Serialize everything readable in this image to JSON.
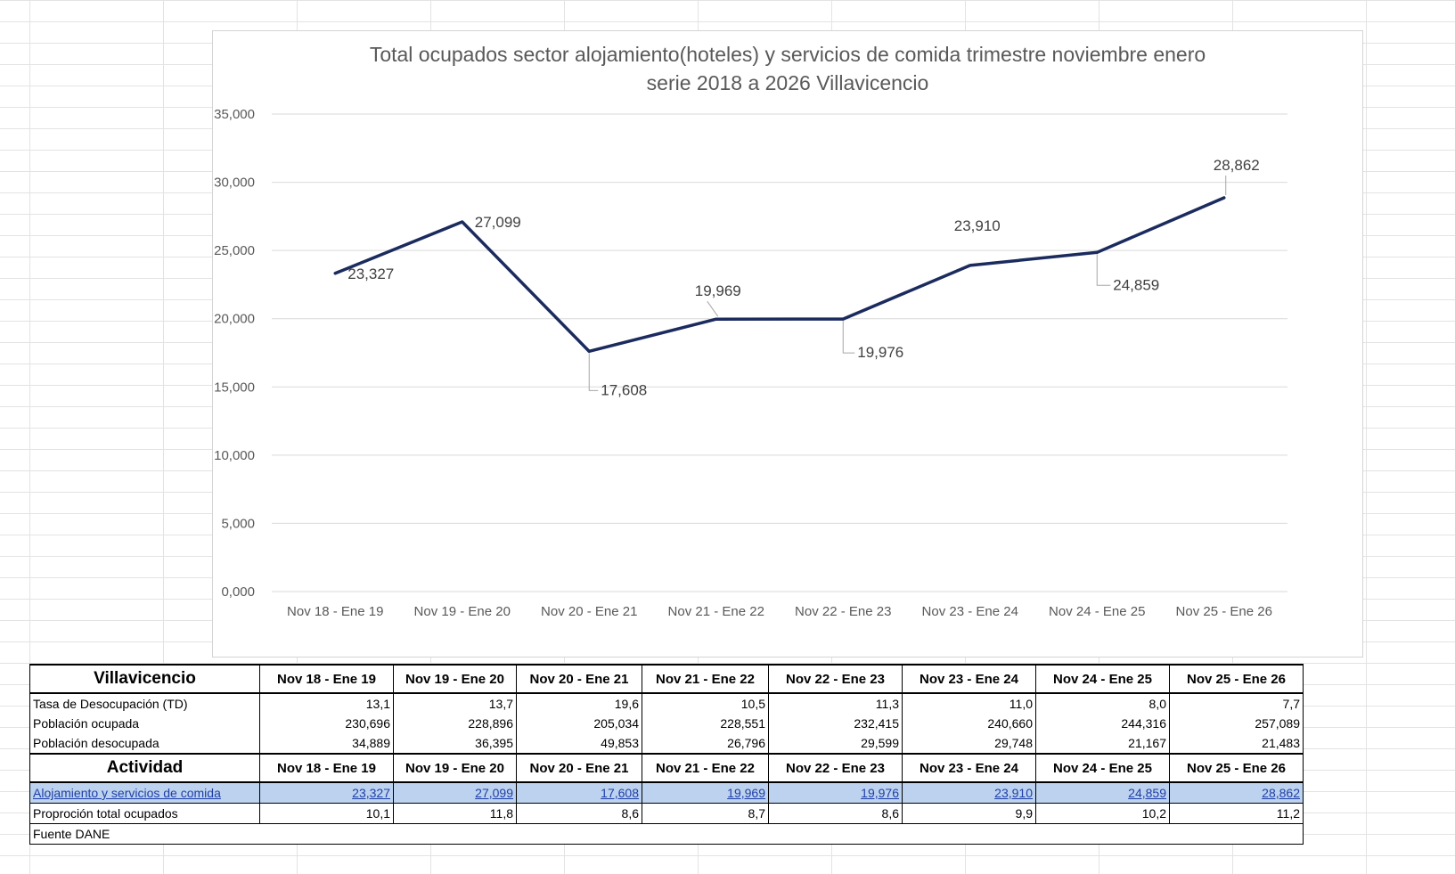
{
  "chart_data": {
    "type": "line",
    "title": [
      "Total ocupados sector alojamiento(hoteles) y servicios de comida trimestre noviembre enero",
      "serie 2018 a 2026 Villavicencio"
    ],
    "categories": [
      "Nov 18 - Ene 19",
      "Nov 19 - Ene 20",
      "Nov 20 - Ene 21",
      "Nov 21 - Ene 22",
      "Nov 22 - Ene 23",
      "Nov 23 - Ene 24",
      "Nov 24 - Ene 25",
      "Nov 25 - Ene 26"
    ],
    "series": [
      {
        "name": "Alojamiento y servicios de comida",
        "values": [
          23327,
          27099,
          17608,
          19969,
          19976,
          23910,
          24859,
          28862
        ]
      }
    ],
    "data_labels": [
      "23,327",
      "27,099",
      "17,608",
      "19,969",
      "19,976",
      "23,910",
      "24,859",
      "28,862"
    ],
    "yticks": [
      "0,000",
      "5,000",
      "10,000",
      "15,000",
      "20,000",
      "25,000",
      "30,000",
      "35,000"
    ],
    "ylim": [
      0,
      35000
    ],
    "grid": true,
    "line_color": "#1b2b5e"
  },
  "table": {
    "periods": [
      "Nov 18 - Ene 19",
      "Nov 19 - Ene 20",
      "Nov 20 - Ene 21",
      "Nov 21 - Ene 22",
      "Nov 22 - Ene 23",
      "Nov 23 - Ene 24",
      "Nov 24 - Ene 25",
      "Nov 25 - Ene 26"
    ],
    "section1_title": "Villavicencio",
    "rows1": [
      {
        "label": "Tasa de Desocupación (TD)",
        "values": [
          "13,1",
          "13,7",
          "19,6",
          "10,5",
          "11,3",
          "11,0",
          "8,0",
          "7,7"
        ]
      },
      {
        "label": "Población ocupada",
        "values": [
          "230,696",
          "228,896",
          "205,034",
          "228,551",
          "232,415",
          "240,660",
          "244,316",
          "257,089"
        ]
      },
      {
        "label": "Población desocupada",
        "values": [
          "34,889",
          "36,395",
          "49,853",
          "26,796",
          "29,599",
          "29,748",
          "21,167",
          "21,483"
        ]
      }
    ],
    "section2_title": "Actividad",
    "rows2": [
      {
        "label": "Alojamiento y servicios de comida",
        "values": [
          "23,327",
          "27,099",
          "17,608",
          "19,969",
          "19,976",
          "23,910",
          "24,859",
          "28,862"
        ]
      },
      {
        "label": "Proproción total ocupados",
        "values": [
          "10,1",
          "11,8",
          "8,6",
          "8,7",
          "8,6",
          "9,9",
          "10,2",
          "11,2"
        ]
      }
    ],
    "source": "Fuente DANE",
    "highlight_color": "#bcd2ee"
  }
}
